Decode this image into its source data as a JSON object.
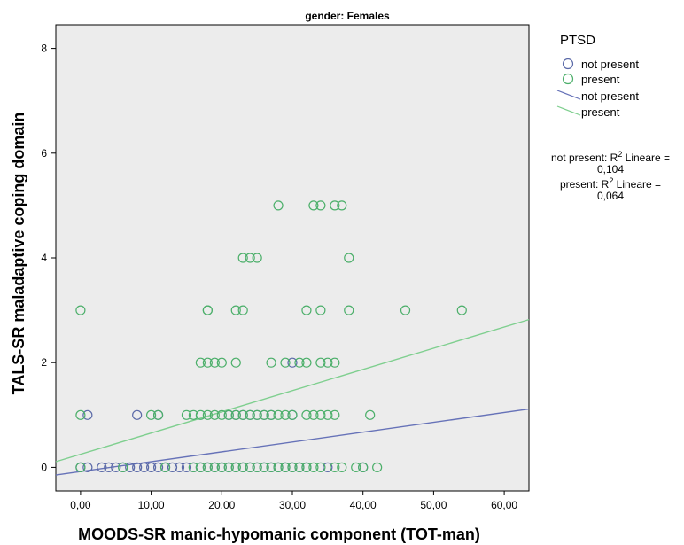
{
  "chart_data": {
    "type": "scatter",
    "title": "gender: Females",
    "xlabel": "MOODS-SR manic-hypomanic component (TOT-man)",
    "ylabel": "TALS-SR maladaptive coping domain",
    "xlim": [
      -3.5,
      63.5
    ],
    "ylim": [
      -0.45,
      8.45
    ],
    "x_ticks": [
      0,
      10,
      20,
      30,
      40,
      50,
      60
    ],
    "x_tick_labels": [
      "0,00",
      "10,00",
      "20,00",
      "30,00",
      "40,00",
      "50,00",
      "60,00"
    ],
    "y_ticks": [
      0,
      2,
      4,
      6,
      8
    ],
    "y_tick_labels": [
      "0",
      "2",
      "4",
      "6",
      "8"
    ],
    "legend": {
      "title": "PTSD",
      "placement": "right",
      "marker_labels": [
        "not present",
        "present"
      ],
      "line_labels": [
        "not present",
        "present"
      ]
    },
    "series": [
      {
        "name": "not present",
        "color": "#5b6aa8",
        "x": [
          0,
          1,
          3,
          4,
          5,
          6,
          7,
          8,
          9,
          10,
          11,
          12,
          13,
          14,
          15,
          16,
          17,
          18,
          19,
          20,
          21,
          22,
          23,
          24,
          25,
          26,
          27,
          28,
          29,
          30,
          31,
          32,
          35,
          40,
          1,
          8,
          11,
          21,
          22,
          23,
          24,
          25,
          26,
          27,
          30,
          30
        ],
        "y": [
          0,
          0,
          0,
          0,
          0,
          0,
          0,
          0,
          0,
          0,
          0,
          0,
          0,
          0,
          0,
          0,
          0,
          0,
          0,
          0,
          0,
          0,
          0,
          0,
          0,
          0,
          0,
          0,
          0,
          0,
          0,
          0,
          0,
          0,
          1,
          1,
          1,
          1,
          1,
          1,
          1,
          1,
          1,
          1,
          1,
          2
        ]
      },
      {
        "name": "present",
        "color": "#4caf6a",
        "x": [
          0,
          6,
          12,
          16,
          17,
          18,
          19,
          20,
          21,
          22,
          23,
          24,
          25,
          26,
          27,
          28,
          29,
          30,
          31,
          32,
          33,
          34,
          36,
          37,
          39,
          40,
          42,
          0,
          10,
          11,
          15,
          16,
          17,
          18,
          19,
          20,
          21,
          22,
          23,
          24,
          25,
          26,
          27,
          28,
          29,
          30,
          32,
          33,
          34,
          35,
          36,
          41,
          17,
          18,
          19,
          20,
          22,
          27,
          29,
          31,
          32,
          34,
          35,
          36,
          0,
          18,
          18,
          22,
          23,
          32,
          34,
          38,
          46,
          54,
          23,
          24,
          25,
          38,
          28,
          33,
          34,
          36,
          37
        ],
        "y": [
          0,
          0,
          0,
          0,
          0,
          0,
          0,
          0,
          0,
          0,
          0,
          0,
          0,
          0,
          0,
          0,
          0,
          0,
          0,
          0,
          0,
          0,
          0,
          0,
          0,
          0,
          0,
          1,
          1,
          1,
          1,
          1,
          1,
          1,
          1,
          1,
          1,
          1,
          1,
          1,
          1,
          1,
          1,
          1,
          1,
          1,
          1,
          1,
          1,
          1,
          1,
          1,
          2,
          2,
          2,
          2,
          2,
          2,
          2,
          2,
          2,
          2,
          2,
          2,
          3,
          3,
          3,
          3,
          3,
          3,
          3,
          3,
          3,
          3,
          4,
          4,
          4,
          4,
          5,
          5,
          5,
          5,
          5
        ]
      }
    ],
    "fit_lines": [
      {
        "name": "not present",
        "color": "#6672b8",
        "intercept": -0.08,
        "slope": 0.0188,
        "r2_label": "not present: R² Lineare = 0,104"
      },
      {
        "name": "present",
        "color": "#7fcf8f",
        "intercept": 0.25,
        "slope": 0.0405,
        "r2_label": "present: R² Lineare = 0,064"
      }
    ],
    "r2_notes": [
      {
        "prefix": "not present: R",
        "sup": "2",
        "suffix": " Lineare =",
        "value": "0,104"
      },
      {
        "prefix": "present: R",
        "sup": "2",
        "suffix": " Lineare =",
        "value": "0,064"
      }
    ]
  }
}
